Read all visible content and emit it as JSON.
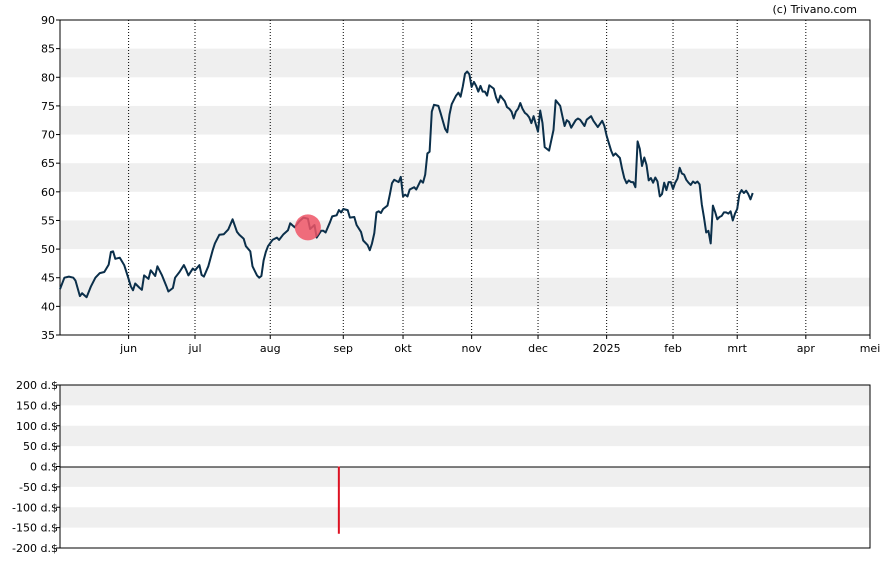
{
  "credit": "(c) Trivano.com",
  "colors": {
    "line": "#0b2f4a",
    "band": "#efefef",
    "marker": "#ee5566",
    "volume": "#dd1122"
  },
  "chart_data": [
    {
      "type": "line",
      "ylim": [
        35,
        90
      ],
      "yticks": [
        "35",
        "40",
        "45",
        "50",
        "55",
        "60",
        "65",
        "70",
        "75",
        "80",
        "85",
        "90"
      ],
      "months": [
        {
          "label": "jun",
          "day": 12
        },
        {
          "label": "jul",
          "day": 42
        },
        {
          "label": "aug",
          "day": 76
        },
        {
          "label": "sep",
          "day": 109
        },
        {
          "label": "okt",
          "day": 136
        },
        {
          "label": "nov",
          "day": 167
        },
        {
          "label": "dec",
          "day": 197
        },
        {
          "label": "2025",
          "day": 228
        },
        {
          "label": "feb",
          "day": 258
        },
        {
          "label": "mrt",
          "day": 287
        },
        {
          "label": "apr",
          "day": 318
        },
        {
          "label": "mei",
          "day": 347
        }
      ],
      "xlim": [
        -19,
        347
      ],
      "series": [
        {
          "points": [
            [
              -19,
              43
            ],
            [
              -17,
              45
            ],
            [
              -15,
              45.2
            ],
            [
              -13,
              45
            ],
            [
              -12,
              44.5
            ],
            [
              -10,
              41.8
            ],
            [
              -9,
              42.3
            ],
            [
              -7,
              41.6
            ],
            [
              -5,
              43.5
            ],
            [
              -3,
              45
            ],
            [
              -1,
              45.8
            ],
            [
              1,
              46
            ],
            [
              3,
              47.3
            ],
            [
              4,
              49.5
            ],
            [
              5,
              49.6
            ],
            [
              6,
              48.3
            ],
            [
              8,
              48.5
            ],
            [
              10,
              47.2
            ],
            [
              12,
              44.8
            ],
            [
              13,
              43.5
            ],
            [
              14,
              42.8
            ],
            [
              15,
              44
            ],
            [
              17,
              43.2
            ],
            [
              18,
              42.9
            ],
            [
              19,
              45.4
            ],
            [
              21,
              44.8
            ],
            [
              22,
              46.3
            ],
            [
              24,
              45.3
            ],
            [
              25,
              47
            ],
            [
              27,
              45.5
            ],
            [
              29,
              43.6
            ],
            [
              30,
              42.6
            ],
            [
              32,
              43.2
            ],
            [
              33,
              45
            ],
            [
              35,
              46
            ],
            [
              37,
              47.2
            ],
            [
              38,
              46.4
            ],
            [
              39,
              45.4
            ],
            [
              41,
              46.6
            ],
            [
              42,
              46.3
            ],
            [
              44,
              47.2
            ],
            [
              45,
              45.5
            ],
            [
              46,
              45.2
            ],
            [
              48,
              47
            ],
            [
              50,
              49.8
            ],
            [
              51,
              51
            ],
            [
              53,
              52.5
            ],
            [
              55,
              52.6
            ],
            [
              57,
              53.4
            ],
            [
              58,
              54.3
            ],
            [
              59,
              55.2
            ],
            [
              61,
              53
            ],
            [
              62,
              52.5
            ],
            [
              64,
              51.8
            ],
            [
              65,
              50.5
            ],
            [
              67,
              49.6
            ],
            [
              68,
              47
            ],
            [
              70,
              45.4
            ],
            [
              71,
              45
            ],
            [
              72,
              45.3
            ],
            [
              73,
              48
            ],
            [
              74,
              49.5
            ],
            [
              75,
              50.5
            ],
            [
              77,
              51.6
            ],
            [
              79,
              52
            ],
            [
              80,
              51.6
            ],
            [
              82,
              52.6
            ],
            [
              84,
              53.3
            ],
            [
              85,
              54.5
            ],
            [
              87,
              53.8
            ],
            [
              89,
              54.8
            ],
            [
              91,
              55.5
            ],
            [
              93,
              55.3
            ],
            [
              94,
              53.5
            ],
            [
              96,
              54.2
            ],
            [
              97,
              52
            ],
            [
              99,
              53.2
            ],
            [
              100,
              53.2
            ],
            [
              101,
              52.9
            ],
            [
              103,
              54.7
            ],
            [
              104,
              55.7
            ],
            [
              106,
              55.9
            ],
            [
              107,
              56.8
            ],
            [
              108,
              56.4
            ],
            [
              109,
              57
            ],
            [
              111,
              56.8
            ],
            [
              112,
              55.5
            ],
            [
              114,
              55.6
            ],
            [
              115,
              54.2
            ],
            [
              117,
              53
            ],
            [
              118,
              51.5
            ],
            [
              120,
              50.7
            ],
            [
              121,
              49.8
            ],
            [
              122,
              51
            ],
            [
              123,
              52.8
            ],
            [
              124,
              56.4
            ],
            [
              125,
              56.6
            ],
            [
              126,
              56.3
            ],
            [
              127,
              57
            ],
            [
              129,
              57.6
            ],
            [
              130,
              59.5
            ],
            [
              131,
              61.5
            ],
            [
              132,
              62.1
            ],
            [
              134,
              61.7
            ],
            [
              135,
              62.6
            ],
            [
              136,
              59.2
            ],
            [
              137,
              59.5
            ],
            [
              138,
              59.2
            ],
            [
              139,
              60.4
            ],
            [
              141,
              60.8
            ],
            [
              142,
              60.4
            ],
            [
              144,
              62
            ],
            [
              145,
              61.6
            ],
            [
              146,
              63
            ],
            [
              147,
              66.7
            ],
            [
              148,
              67
            ],
            [
              149,
              74
            ],
            [
              150,
              75.2
            ],
            [
              152,
              75
            ],
            [
              153,
              73.7
            ],
            [
              155,
              71
            ],
            [
              156,
              70.4
            ],
            [
              157,
              73.5
            ],
            [
              158,
              75.3
            ],
            [
              160,
              76.8
            ],
            [
              161,
              77.3
            ],
            [
              162,
              76.6
            ],
            [
              163,
              78.4
            ],
            [
              164,
              80.6
            ],
            [
              165,
              81
            ],
            [
              166,
              80.5
            ],
            [
              167,
              78.3
            ],
            [
              168,
              79.2
            ],
            [
              169,
              78.5
            ],
            [
              170,
              77.5
            ],
            [
              171,
              78.5
            ],
            [
              172,
              77.5
            ],
            [
              173,
              77.5
            ],
            [
              174,
              76.8
            ],
            [
              175,
              78.6
            ],
            [
              176,
              78.3
            ],
            [
              177,
              78
            ],
            [
              178,
              76.5
            ],
            [
              179,
              75.6
            ],
            [
              180,
              76.8
            ],
            [
              181,
              76.3
            ],
            [
              182,
              75.8
            ],
            [
              183,
              74.8
            ],
            [
              184,
              74.5
            ],
            [
              185,
              74
            ],
            [
              186,
              72.8
            ],
            [
              187,
              74
            ],
            [
              188,
              74.5
            ],
            [
              189,
              75.5
            ],
            [
              190,
              74.5
            ],
            [
              191,
              73.8
            ],
            [
              192,
              73.5
            ],
            [
              193,
              73
            ],
            [
              194,
              72
            ],
            [
              195,
              73.2
            ],
            [
              196,
              71.8
            ],
            [
              197,
              70.5
            ],
            [
              198,
              74.2
            ],
            [
              199,
              72
            ],
            [
              200,
              67.8
            ],
            [
              202,
              67.2
            ],
            [
              204,
              70.8
            ],
            [
              205,
              76
            ],
            [
              207,
              75
            ],
            [
              208,
              73.2
            ],
            [
              209,
              71.5
            ],
            [
              210,
              72.5
            ],
            [
              211,
              72.2
            ],
            [
              212,
              71.2
            ],
            [
              214,
              72.5
            ],
            [
              215,
              72.8
            ],
            [
              216,
              72.6
            ],
            [
              218,
              71.5
            ],
            [
              219,
              72.6
            ],
            [
              221,
              73.2
            ],
            [
              222,
              72.4
            ],
            [
              224,
              71.3
            ],
            [
              226,
              72.4
            ],
            [
              227,
              71.5
            ],
            [
              228,
              69.8
            ],
            [
              230,
              67.2
            ],
            [
              231,
              66.3
            ],
            [
              232,
              66.7
            ],
            [
              234,
              65.9
            ],
            [
              235,
              64
            ],
            [
              236,
              62.4
            ],
            [
              237,
              61.5
            ],
            [
              238,
              62
            ],
            [
              239,
              61.7
            ],
            [
              240,
              61.7
            ],
            [
              241,
              60.8
            ],
            [
              242,
              68.8
            ],
            [
              243,
              67.5
            ],
            [
              244,
              64.5
            ],
            [
              245,
              66
            ],
            [
              246,
              64.7
            ],
            [
              247,
              62
            ],
            [
              248,
              62.4
            ],
            [
              249,
              61.6
            ],
            [
              250,
              62.5
            ],
            [
              251,
              61.8
            ],
            [
              252,
              59.2
            ],
            [
              253,
              59.6
            ],
            [
              254,
              61.6
            ],
            [
              255,
              60.3
            ],
            [
              256,
              61.7
            ],
            [
              257,
              61.7
            ],
            [
              258,
              60.5
            ],
            [
              259,
              61.6
            ],
            [
              260,
              62.3
            ],
            [
              261,
              64.2
            ],
            [
              262,
              63.2
            ],
            [
              263,
              63
            ],
            [
              264,
              62.1
            ],
            [
              265,
              61.6
            ],
            [
              266,
              61.2
            ],
            [
              267,
              61.8
            ],
            [
              268,
              61.5
            ],
            [
              269,
              61.8
            ],
            [
              270,
              61.3
            ],
            [
              271,
              57.8
            ],
            [
              272,
              55.5
            ],
            [
              273,
              52.9
            ],
            [
              274,
              53.2
            ],
            [
              275,
              51
            ],
            [
              276,
              57.6
            ],
            [
              277,
              56.5
            ],
            [
              278,
              55.2
            ],
            [
              279,
              55.6
            ],
            [
              280,
              55.8
            ],
            [
              281,
              56.4
            ],
            [
              282,
              56.4
            ],
            [
              283,
              56.2
            ],
            [
              284,
              56.6
            ],
            [
              285,
              55
            ],
            [
              286,
              56.2
            ],
            [
              287,
              57
            ],
            [
              288,
              59.6
            ],
            [
              289,
              60.3
            ],
            [
              290,
              59.8
            ],
            [
              291,
              60.2
            ],
            [
              292,
              59.6
            ],
            [
              293,
              58.7
            ],
            [
              294,
              59.8
            ]
          ]
        }
      ],
      "marker": {
        "x": 93,
        "y": 53.8
      }
    },
    {
      "type": "bar",
      "ylim": [
        -200,
        200
      ],
      "yticks": [
        "-200 d.$",
        "-150 d.$",
        "-100 d.$",
        "-50 d.$",
        "0 d.$",
        "50 d.$",
        "100 d.$",
        "150 d.$",
        "200 d.$"
      ],
      "bars": [
        {
          "x": 107,
          "value": -165
        }
      ]
    }
  ]
}
